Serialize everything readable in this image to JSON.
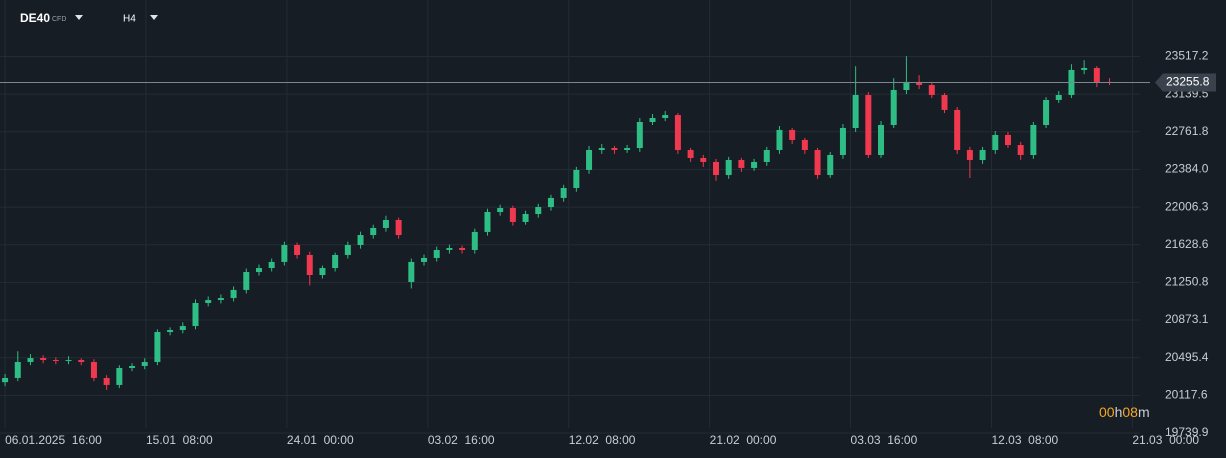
{
  "header": {
    "symbol": "DE40",
    "symbol_tag": "CFD",
    "timeframe": "H4"
  },
  "chart_data": {
    "type": "candlestick",
    "up_color": "#2ebd85",
    "down_color": "#f0384f",
    "grid": true,
    "open": [
      20250,
      20292,
      20452,
      20492,
      20472,
      20462,
      20472,
      20452,
      20292,
      20222,
      20392,
      20412,
      20452,
      20753,
      20773,
      20813,
      21044,
      21074,
      21094,
      21175,
      21355,
      21395,
      21456,
      21626,
      21526,
      21325,
      21395,
      21526,
      21626,
      21726,
      21797,
      21877,
      21255,
      21456,
      21496,
      21576,
      21596,
      21576,
      21757,
      21957,
      21997,
      21857,
      21937,
      22007,
      22098,
      22198,
      22379,
      22579,
      22599,
      22579,
      22599,
      22860,
      22900,
      22930,
      22579,
      22499,
      22459,
      22328,
      22479,
      22399,
      22459,
      22579,
      22780,
      22680,
      22579,
      22328,
      22529,
      22800,
      23131,
      22529,
      22830,
      23181,
      23262,
      23231,
      23131,
      22981,
      22579,
      22479,
      22579,
      22730,
      22629,
      22529,
      22830,
      23081,
      23131,
      23382,
      23402,
      23262
    ],
    "high": [
      20332,
      20560,
      20532,
      20520,
      20500,
      20510,
      20490,
      20480,
      20320,
      20420,
      20440,
      20490,
      20780,
      20800,
      20850,
      21080,
      21110,
      21130,
      21210,
      21390,
      21430,
      21490,
      21660,
      21650,
      21560,
      21420,
      21550,
      21660,
      21760,
      21830,
      21920,
      21900,
      21490,
      21530,
      21610,
      21630,
      21620,
      21790,
      21990,
      22030,
      22020,
      21970,
      22040,
      22130,
      22230,
      22410,
      22620,
      22640,
      22620,
      22630,
      22900,
      22940,
      22970,
      22950,
      22600,
      22530,
      22490,
      22510,
      22500,
      22490,
      22610,
      22820,
      22800,
      22700,
      22600,
      22560,
      22840,
      23420,
      23160,
      22870,
      23300,
      23520,
      23330,
      23260,
      23150,
      23010,
      22610,
      22610,
      22770,
      22760,
      22660,
      22860,
      23110,
      23170,
      23440,
      23480,
      23420,
      23300
    ],
    "low": [
      20210,
      20260,
      20420,
      20440,
      20430,
      20430,
      20420,
      20260,
      20172,
      20190,
      20360,
      20380,
      20420,
      20720,
      20740,
      20780,
      21010,
      21040,
      21060,
      21140,
      21320,
      21360,
      21420,
      21490,
      21220,
      21290,
      21360,
      21490,
      21590,
      21690,
      21760,
      21690,
      21190,
      21420,
      21460,
      21540,
      21540,
      21540,
      21720,
      21920,
      21820,
      21830,
      21900,
      21970,
      22060,
      22160,
      22340,
      22540,
      22540,
      22550,
      22560,
      22830,
      22870,
      22540,
      22460,
      22410,
      22270,
      22290,
      22360,
      22370,
      22420,
      22540,
      22640,
      22540,
      22290,
      22300,
      22490,
      22760,
      22500,
      22500,
      22800,
      23140,
      23190,
      23100,
      22950,
      22540,
      22298,
      22440,
      22540,
      22600,
      22480,
      22490,
      22800,
      23050,
      23100,
      23340,
      23210,
      23230
    ],
    "close": [
      20292,
      20452,
      20492,
      20472,
      20462,
      20472,
      20452,
      20292,
      20222,
      20392,
      20412,
      20452,
      20753,
      20773,
      20813,
      21044,
      21074,
      21094,
      21175,
      21355,
      21395,
      21456,
      21626,
      21526,
      21325,
      21395,
      21526,
      21626,
      21726,
      21797,
      21877,
      21726,
      21456,
      21496,
      21576,
      21596,
      21576,
      21757,
      21957,
      21997,
      21857,
      21937,
      22007,
      22098,
      22198,
      22379,
      22579,
      22599,
      22579,
      22599,
      22860,
      22900,
      22930,
      22579,
      22499,
      22459,
      22328,
      22479,
      22399,
      22459,
      22579,
      22780,
      22680,
      22579,
      22328,
      22529,
      22800,
      23131,
      22529,
      22830,
      23181,
      23262,
      23231,
      23131,
      22981,
      22579,
      22479,
      22579,
      22730,
      22629,
      22529,
      22830,
      23081,
      23131,
      23382,
      23402,
      23262,
      23256
    ],
    "xlim": [
      -0.4,
      89.4
    ],
    "xticks": [
      {
        "value": 0,
        "label": "06.01.2025  16:00"
      },
      {
        "value": 11.1,
        "label": "15.01  08:00"
      },
      {
        "value": 22.2,
        "label": "24.01  00:00"
      },
      {
        "value": 33.3,
        "label": "03.02  16:00"
      },
      {
        "value": 44.4,
        "label": "12.02  08:00"
      },
      {
        "value": 55.5,
        "label": "21.02  00:00"
      },
      {
        "value": 66.6,
        "label": "03.03  16:00"
      },
      {
        "value": 77.7,
        "label": "12.03  08:00"
      },
      {
        "value": 88.8,
        "label": "21.03  00:00"
      }
    ],
    "ylim": [
      19739.9,
      23883.3
    ],
    "yticks": [
      23517.2,
      23139.5,
      22761.8,
      {
        "value": 22384.0,
        "label": "22384.0"
      },
      22006.3,
      21628.6,
      21250.8,
      20873.1,
      20495.4,
      20117.6,
      19739.9
    ],
    "current_price": 23255.8,
    "countdown": [
      "00",
      "h",
      "08",
      "m"
    ]
  }
}
